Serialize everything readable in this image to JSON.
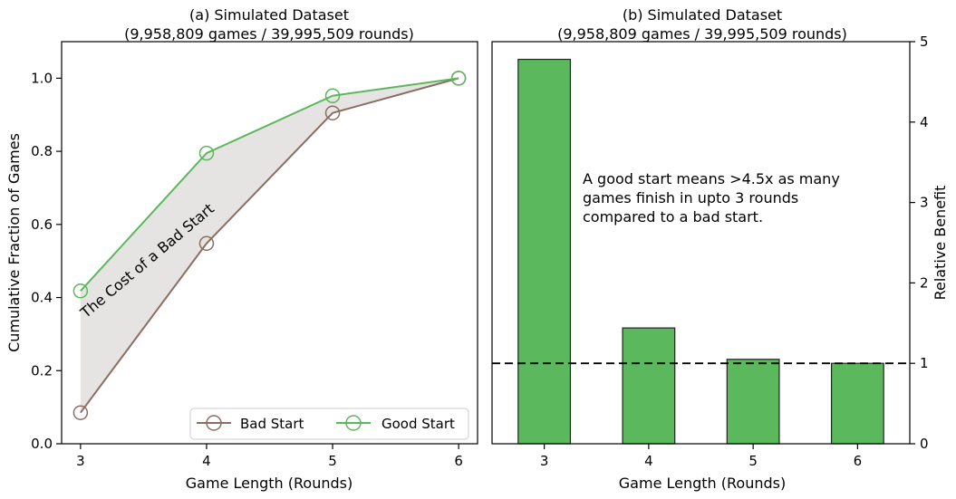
{
  "chart_data": [
    {
      "type": "line",
      "title_line1": "(a) Simulated Dataset",
      "title_line2": "(9,958,809 games / 39,995,509 rounds)",
      "xlabel": "Game Length (Rounds)",
      "ylabel": "Cumulative Fraction of Games",
      "x": [
        3,
        4,
        5,
        6
      ],
      "xlim": [
        2.85,
        6.15
      ],
      "ylim": [
        0.0,
        1.1
      ],
      "yticks": [
        "0.0",
        "0.2",
        "0.4",
        "0.6",
        "0.8",
        "1.0"
      ],
      "xticks": [
        "3",
        "4",
        "5",
        "6"
      ],
      "series": [
        {
          "name": "Bad Start",
          "values": [
            0.085,
            0.548,
            0.905,
            1.0
          ],
          "color": "#8c6d62"
        },
        {
          "name": "Good Start",
          "values": [
            0.418,
            0.795,
            0.952,
            1.0
          ],
          "color": "#5cb85c"
        }
      ],
      "fill_between": {
        "color": "#e6e4e2",
        "label": "The Cost of a Bad Start"
      },
      "legend": "lower-right"
    },
    {
      "type": "bar",
      "title_line1": "(b) Simulated Dataset",
      "title_line2": "(9,958,809 games / 39,995,509 rounds)",
      "xlabel": "Game Length (Rounds)",
      "ylabel": "Relative Benefit",
      "categories": [
        "3",
        "4",
        "5",
        "6"
      ],
      "values": [
        4.78,
        1.44,
        1.05,
        1.0
      ],
      "bar_color": "#5cb85c",
      "ylim": [
        0,
        5
      ],
      "yticks": [
        "0",
        "1",
        "2",
        "3",
        "4",
        "5"
      ],
      "y_axis_side": "right",
      "reference_line": 1.0,
      "annotation": [
        "A good start means >4.5x as many",
        "games finish in upto 3 rounds",
        "compared to a bad start."
      ]
    }
  ]
}
